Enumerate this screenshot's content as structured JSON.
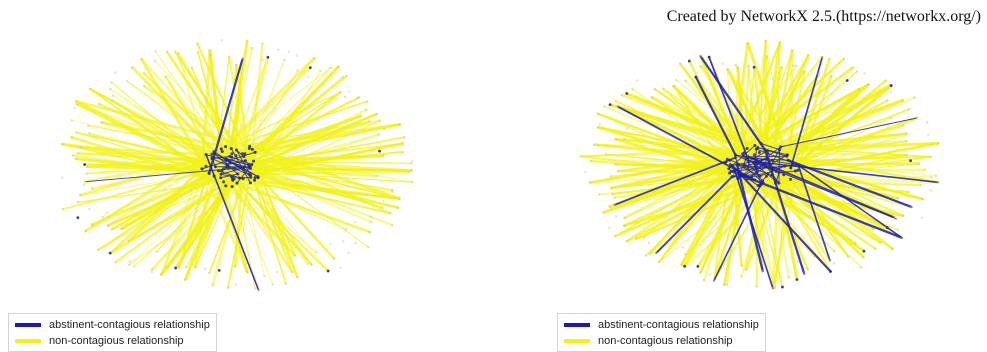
{
  "credit": "Created by NetworkX 2.5.(https://networkx.org/)",
  "colors": {
    "abstinent": "#1a1ab8",
    "noncontagious": "#f2f218",
    "node": "#2a2a8a",
    "background": "#ffffff"
  },
  "panels": [
    {
      "id": "left",
      "legend": {
        "items": [
          {
            "label": "abstinent-contagious relationship",
            "color": "#1a1ab8"
          },
          {
            "label": "non-contagious relationship",
            "color": "#f2f218"
          }
        ]
      }
    },
    {
      "id": "right",
      "legend": {
        "items": [
          {
            "label": "abstinent-contagious relationship",
            "color": "#1a1ab8"
          },
          {
            "label": "non-contagious relationship",
            "color": "#f2f218"
          }
        ]
      }
    }
  ]
}
